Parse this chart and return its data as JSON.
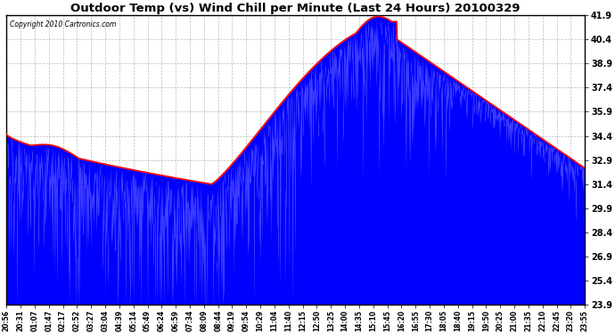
{
  "title": "Outdoor Temp (vs) Wind Chill per Minute (Last 24 Hours) 20100329",
  "copyright": "Copyright 2010 Cartronics.com",
  "yticks": [
    23.9,
    25.4,
    26.9,
    28.4,
    29.9,
    31.4,
    32.9,
    34.4,
    35.9,
    37.4,
    38.9,
    40.4,
    41.9
  ],
  "ymin": 23.9,
  "ymax": 41.9,
  "background_color": "#ffffff",
  "plot_bg_color": "#ffffff",
  "grid_color": "#aaaaaa",
  "title_color": "#000000",
  "outdoor_temp_color": "#ff0000",
  "wind_chill_color": "#0000ff",
  "xtick_labels": [
    "20:56",
    "20:31",
    "01:07",
    "01:47",
    "02:17",
    "02:52",
    "03:27",
    "03:04",
    "04:39",
    "05:14",
    "05:49",
    "06:24",
    "06:59",
    "07:34",
    "08:09",
    "08:44",
    "09:19",
    "09:54",
    "10:29",
    "11:04",
    "11:40",
    "12:15",
    "12:50",
    "13:25",
    "14:00",
    "14:35",
    "15:10",
    "15:45",
    "16:20",
    "16:55",
    "17:30",
    "18:05",
    "18:40",
    "19:15",
    "19:50",
    "20:25",
    "21:00",
    "21:35",
    "22:10",
    "22:45",
    "23:20",
    "23:55"
  ],
  "noise_scale_early": 2.2,
  "noise_scale_mid_low": 3.0,
  "noise_scale_mid": 2.5,
  "noise_scale_peak": 2.0,
  "noise_scale_late": 0.6,
  "figwidth": 6.9,
  "figheight": 3.75,
  "dpi": 100
}
